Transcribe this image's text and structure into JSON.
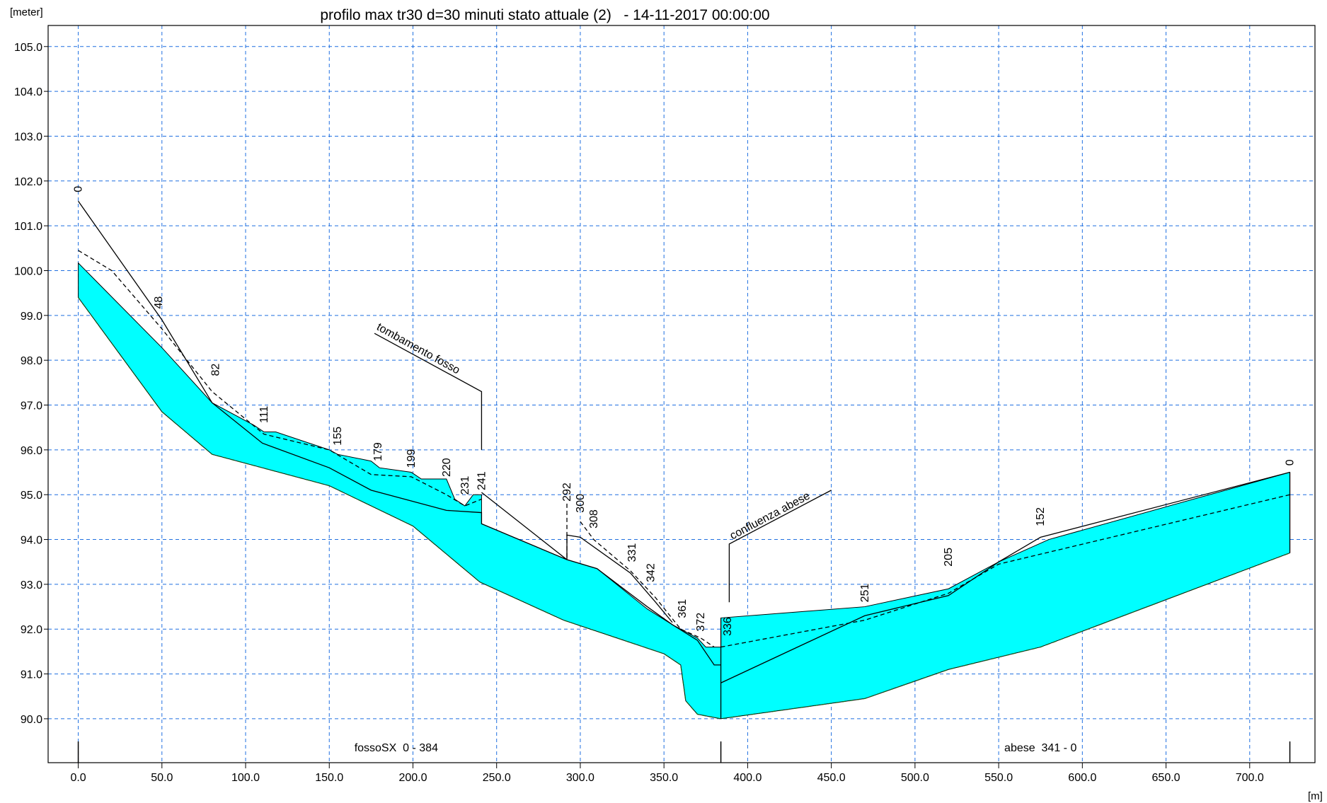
{
  "chart_data": {
    "type": "line",
    "title": "profilo max tr30 d=30 minuti stato attuale (2)   - 14-11-2017 00:00:00",
    "y_label": "[meter]",
    "x_label": "[m]",
    "xlim": [
      -18,
      739
    ],
    "ylim": [
      89.02,
      105.47
    ],
    "xticks": [
      {
        "value": 0,
        "label": "0.0"
      },
      {
        "value": 50,
        "label": "50.0"
      },
      {
        "value": 100,
        "label": "100.0"
      },
      {
        "value": 150,
        "label": "150.0"
      },
      {
        "value": 200,
        "label": "200.0"
      },
      {
        "value": 250,
        "label": "250.0"
      },
      {
        "value": 300,
        "label": "300.0"
      },
      {
        "value": 350,
        "label": "350.0"
      },
      {
        "value": 400,
        "label": "400.0"
      },
      {
        "value": 450,
        "label": "450.0"
      },
      {
        "value": 500,
        "label": "500.0"
      },
      {
        "value": 550,
        "label": "550.0"
      },
      {
        "value": 600,
        "label": "600.0"
      },
      {
        "value": 650,
        "label": "650.0"
      },
      {
        "value": 700,
        "label": "700.0"
      }
    ],
    "yticks": [
      {
        "value": 90,
        "label": "90.0"
      },
      {
        "value": 91,
        "label": "91.0"
      },
      {
        "value": 92,
        "label": "92.0"
      },
      {
        "value": 93,
        "label": "93.0"
      },
      {
        "value": 94,
        "label": "94.0"
      },
      {
        "value": 95,
        "label": "95.0"
      },
      {
        "value": 96,
        "label": "96.0"
      },
      {
        "value": 97,
        "label": "97.0"
      },
      {
        "value": 98,
        "label": "98.0"
      },
      {
        "value": 99,
        "label": "99.0"
      },
      {
        "value": 100,
        "label": "100.0"
      },
      {
        "value": 101,
        "label": "101.0"
      },
      {
        "value": 102,
        "label": "102.0"
      },
      {
        "value": 103,
        "label": "103.0"
      },
      {
        "value": 104,
        "label": "104.0"
      },
      {
        "value": 105,
        "label": "105.0"
      }
    ],
    "grid": true,
    "grid_color": "#1f6fe0",
    "series": [
      {
        "color": "#00ffff",
        "fill_to_series": 1,
        "x": [
          0,
          50,
          80,
          105,
          111,
          118,
          150,
          155,
          175,
          180,
          199,
          205,
          220,
          225,
          231,
          236,
          241,
          241,
          292,
          310,
          340,
          355,
          370,
          375,
          384,
          384,
          470,
          520,
          550,
          580,
          724,
          724
        ],
        "values": [
          100.17,
          98.28,
          97.05,
          96.55,
          96.4,
          96.4,
          96.0,
          95.9,
          95.75,
          95.6,
          95.5,
          95.35,
          95.35,
          94.9,
          94.75,
          95.0,
          95.0,
          94.35,
          93.55,
          93.35,
          92.45,
          92.1,
          91.8,
          91.6,
          91.6,
          92.25,
          92.5,
          92.9,
          93.5,
          94.0,
          95.5,
          93.7
        ]
      },
      {
        "color": "#1a5c1a",
        "dashed": true,
        "x": [
          0,
          50,
          80,
          110,
          150,
          200,
          240,
          290,
          350,
          360,
          363,
          370,
          384,
          470,
          520,
          575,
          724
        ],
        "values": [
          99.4,
          96.85,
          95.9,
          95.6,
          95.2,
          94.3,
          93.05,
          92.2,
          91.45,
          91.2,
          90.4,
          90.1,
          90.0,
          90.45,
          91.1,
          91.6,
          93.7
        ]
      },
      {
        "color": "#000000",
        "x": [
          0,
          50,
          80,
          110,
          150,
          175,
          220,
          241,
          241,
          292,
          310,
          340,
          355,
          370,
          380,
          384,
          null,
          241,
          292,
          null,
          292,
          292,
          300,
          330,
          345,
          355,
          null,
          384,
          470,
          520,
          550,
          575,
          724,
          null,
          384,
          384,
          null,
          724,
          724
        ],
        "values": [
          101.55,
          98.9,
          97.05,
          96.15,
          95.6,
          95.1,
          94.65,
          94.6,
          94.35,
          93.55,
          93.35,
          92.5,
          92.1,
          91.75,
          91.2,
          91.2,
          null,
          95.05,
          93.55,
          null,
          93.55,
          94.1,
          94.05,
          93.25,
          92.6,
          92.15,
          null,
          90.8,
          92.3,
          92.75,
          93.5,
          94.05,
          95.5,
          null,
          90.0,
          92.25,
          null,
          93.7,
          95.5
        ]
      },
      {
        "color": "#000000",
        "dashed": true,
        "x": [
          0,
          20,
          50,
          80,
          111,
          150,
          175,
          199,
          220,
          231,
          241,
          null,
          292,
          292,
          null,
          300,
          308,
          330,
          345,
          360,
          372,
          380,
          null,
          384,
          470,
          520,
          550,
          724
        ],
        "values": [
          100.45,
          100.0,
          98.7,
          97.3,
          96.35,
          96.0,
          95.45,
          95.4,
          95.0,
          94.75,
          94.9,
          null,
          94.8,
          93.6,
          null,
          94.4,
          94.0,
          93.3,
          92.7,
          92.0,
          91.8,
          91.6,
          null,
          91.6,
          92.2,
          92.8,
          93.45,
          95.0
        ]
      }
    ],
    "section_labels": [
      {
        "label": "0",
        "x": 0,
        "y": 101.7
      },
      {
        "label": "48",
        "x": 48,
        "y": 99.1
      },
      {
        "label": "82",
        "x": 82,
        "y": 97.6
      },
      {
        "label": "111",
        "x": 111,
        "y": 96.55
      },
      {
        "label": "155",
        "x": 155,
        "y": 96.05
      },
      {
        "label": "179",
        "x": 179,
        "y": 95.7
      },
      {
        "label": "199",
        "x": 199,
        "y": 95.55
      },
      {
        "label": "220",
        "x": 220,
        "y": 95.35
      },
      {
        "label": "231",
        "x": 231,
        "y": 94.95
      },
      {
        "label": "241",
        "x": 241,
        "y": 95.05
      },
      {
        "label": "292",
        "x": 292,
        "y": 94.8
      },
      {
        "label": "300",
        "x": 300,
        "y": 94.55
      },
      {
        "label": "308",
        "x": 308,
        "y": 94.2
      },
      {
        "label": "331",
        "x": 331,
        "y": 93.45
      },
      {
        "label": "342",
        "x": 342,
        "y": 93.0
      },
      {
        "label": "361",
        "x": 361,
        "y": 92.2
      },
      {
        "label": "372",
        "x": 372,
        "y": 91.9
      },
      {
        "label": "336",
        "x": 388,
        "y": 91.8
      },
      {
        "label": "251",
        "x": 470,
        "y": 92.55
      },
      {
        "label": "205",
        "x": 520,
        "y": 93.35
      },
      {
        "label": "152",
        "x": 575,
        "y": 94.25
      },
      {
        "label": "0",
        "x": 724,
        "y": 95.6
      }
    ],
    "annotations": [
      {
        "text": "tombamento fosso",
        "x": 177,
        "y": 98.6,
        "angle": 29,
        "leader_x": [
          177,
          241,
          241
        ],
        "leader_y": [
          98.6,
          97.3,
          96.0
        ]
      },
      {
        "text": "confluenza abese",
        "x": 390,
        "y": 93.9,
        "angle": -28,
        "leader_x": [
          450,
          389,
          389
        ],
        "leader_y": [
          95.1,
          93.9,
          92.6
        ]
      }
    ],
    "branches": [
      {
        "label": "fossoSX  0 - 384",
        "x": 190
      },
      {
        "label": "abese  341 - 0",
        "x": 575
      }
    ],
    "branch_bounds": [
      0,
      384,
      724
    ]
  }
}
